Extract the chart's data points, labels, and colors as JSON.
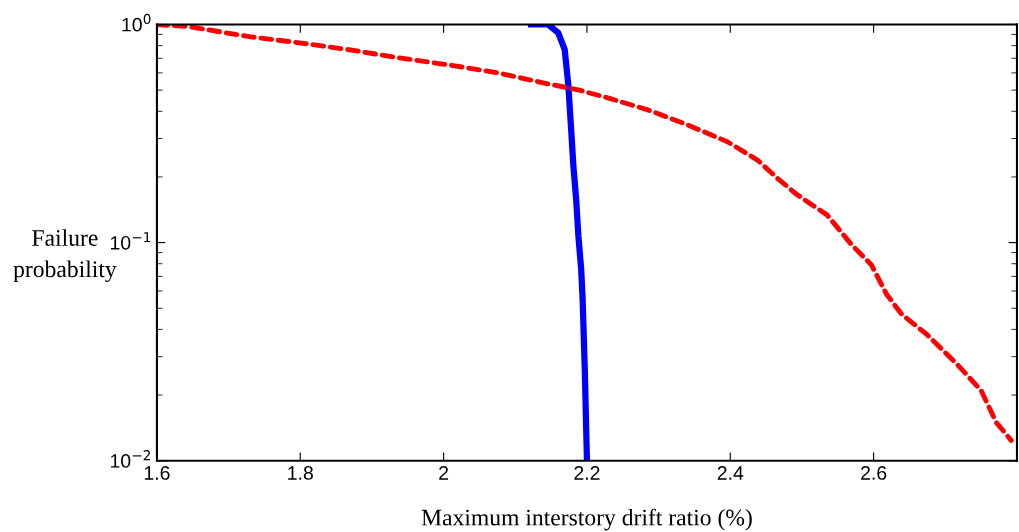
{
  "chart_data": {
    "type": "line",
    "xlabel": "Maximum interstory drift ratio (%)",
    "ylabel": "Failure\nprobability",
    "log": "y",
    "xlim": [
      1.6,
      2.8
    ],
    "xticks": [
      1.6,
      1.8,
      2,
      2.2,
      2.4,
      2.6
    ],
    "ylim": [
      0.01,
      1
    ],
    "yticks": [
      {
        "value": 1,
        "label": "10$^{0}$"
      },
      {
        "value": 0.1,
        "label": "10$^{−1}$"
      },
      {
        "value": 0.01,
        "label": "10$^{−2}$"
      }
    ],
    "grid": false,
    "marker": "none",
    "series": [
      {
        "color": "#0000ff",
        "line_style": "solid",
        "x": [
          2.122,
          2.146,
          2.16,
          2.169,
          2.174,
          2.178,
          2.181,
          2.185,
          2.188,
          2.192,
          2.194,
          2.197,
          2.2
        ],
        "values": [
          1.0,
          1.0,
          0.916,
          0.766,
          0.528,
          0.329,
          0.227,
          0.157,
          0.108,
          0.075,
          0.055,
          0.026,
          0.01
        ]
      },
      {
        "color": "#ff0000",
        "line_style": "dashed",
        "x": [
          1.6,
          1.646,
          1.729,
          1.799,
          1.868,
          1.938,
          2.007,
          2.076,
          2.139,
          2.188,
          2.229,
          2.285,
          2.34,
          2.396,
          2.438,
          2.465,
          2.493,
          2.535,
          2.569,
          2.597,
          2.618,
          2.639,
          2.674,
          2.715,
          2.75,
          2.771,
          2.792
        ],
        "values": [
          1.0,
          0.976,
          0.879,
          0.824,
          0.766,
          0.703,
          0.653,
          0.6,
          0.54,
          0.501,
          0.461,
          0.406,
          0.347,
          0.29,
          0.239,
          0.198,
          0.166,
          0.134,
          0.098,
          0.079,
          0.058,
          0.047,
          0.038,
          0.028,
          0.021,
          0.015,
          0.0124
        ]
      }
    ]
  }
}
